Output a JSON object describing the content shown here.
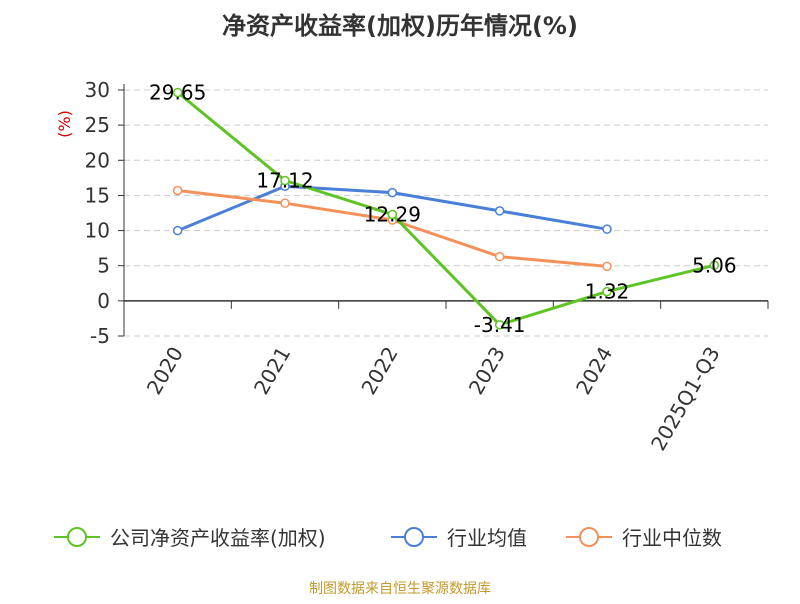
{
  "chart_data": {
    "type": "line",
    "title": "净资产收益率(加权)历年情况(%)",
    "ylabel": "(%)",
    "categories": [
      "2020",
      "2021",
      "2022",
      "2023",
      "2024",
      "2025Q1-Q3"
    ],
    "ylim": [
      -5,
      30
    ],
    "yticks": [
      30,
      25,
      20,
      15,
      10,
      5,
      0,
      -5
    ],
    "grid": true,
    "legend_position": "bottom",
    "series": [
      {
        "name": "公司净资产收益率(加权)",
        "color": "#5ec423",
        "values": [
          29.65,
          17.12,
          12.29,
          -3.41,
          1.32,
          5.06
        ],
        "labels": [
          "29.65",
          "17.12",
          "12.29",
          "-3.41",
          "1.32",
          "5.06"
        ]
      },
      {
        "name": "行业均值",
        "color": "#4a7fd8",
        "values": [
          10.0,
          16.3,
          15.4,
          12.8,
          10.2,
          null
        ]
      },
      {
        "name": "行业中位数",
        "color": "#f4915a",
        "values": [
          15.7,
          13.9,
          11.5,
          6.3,
          4.9,
          null
        ]
      }
    ]
  },
  "source": "制图数据来自恒生聚源数据库"
}
